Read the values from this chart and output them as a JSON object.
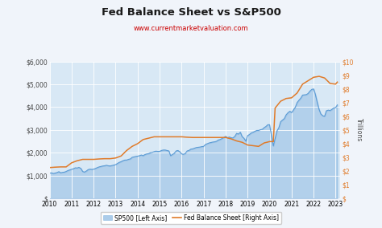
{
  "title": "Fed Balance Sheet vs S&P500",
  "subtitle": "www.currentmarketvaluation.com",
  "subtitle_color": "#cc0000",
  "background_color": "#f0f4fa",
  "plot_bg_color": "#d8e8f5",
  "grid_color": "#ffffff",
  "sp500_color": "#5b9bd5",
  "fed_color": "#e07b2a",
  "sp500_fill_alpha": 0.3,
  "ylabel_right": "Trillions",
  "left_ylim": [
    0,
    6000
  ],
  "right_ylim": [
    0,
    10
  ],
  "left_yticks": [
    0,
    1000,
    2000,
    3000,
    4000,
    5000,
    6000
  ],
  "right_yticks": [
    0,
    1,
    2,
    3,
    4,
    5,
    6,
    7,
    8,
    9,
    10
  ],
  "left_yticklabels": [
    "$",
    "$1,000",
    "$2,000",
    "$3,000",
    "$4,000",
    "$5,000",
    "$6,000"
  ],
  "right_yticklabels": [
    "$",
    "$1",
    "$2",
    "$3",
    "$4",
    "$5",
    "$6",
    "$7",
    "$8",
    "$9",
    "$10"
  ],
  "xticks": [
    2010,
    2011,
    2012,
    2013,
    2014,
    2015,
    2016,
    2017,
    2018,
    2019,
    2020,
    2021,
    2022,
    2023
  ],
  "legend_sp500": "SP500 [Left Axis]",
  "legend_fed": "Fed Balance Sheet [Right Axis]",
  "sp500_x": [
    2010.0,
    2010.08,
    2010.17,
    2010.25,
    2010.33,
    2010.42,
    2010.5,
    2010.58,
    2010.67,
    2010.75,
    2010.83,
    2010.92,
    2011.0,
    2011.08,
    2011.17,
    2011.25,
    2011.33,
    2011.42,
    2011.5,
    2011.58,
    2011.67,
    2011.75,
    2011.83,
    2011.92,
    2012.0,
    2012.08,
    2012.17,
    2012.25,
    2012.33,
    2012.42,
    2012.5,
    2012.58,
    2012.67,
    2012.75,
    2012.83,
    2012.92,
    2013.0,
    2013.08,
    2013.17,
    2013.25,
    2013.33,
    2013.42,
    2013.5,
    2013.58,
    2013.67,
    2013.75,
    2013.83,
    2013.92,
    2014.0,
    2014.08,
    2014.17,
    2014.25,
    2014.33,
    2014.42,
    2014.5,
    2014.58,
    2014.67,
    2014.75,
    2014.83,
    2014.92,
    2015.0,
    2015.08,
    2015.17,
    2015.25,
    2015.33,
    2015.42,
    2015.5,
    2015.58,
    2015.67,
    2015.75,
    2015.83,
    2015.92,
    2016.0,
    2016.08,
    2016.17,
    2016.25,
    2016.33,
    2016.42,
    2016.5,
    2016.58,
    2016.67,
    2016.75,
    2016.83,
    2016.92,
    2017.0,
    2017.08,
    2017.17,
    2017.25,
    2017.33,
    2017.42,
    2017.5,
    2017.58,
    2017.67,
    2017.75,
    2017.83,
    2017.92,
    2018.0,
    2018.08,
    2018.17,
    2018.25,
    2018.33,
    2018.42,
    2018.5,
    2018.58,
    2018.67,
    2018.75,
    2018.83,
    2018.92,
    2019.0,
    2019.08,
    2019.17,
    2019.25,
    2019.33,
    2019.42,
    2019.5,
    2019.58,
    2019.67,
    2019.75,
    2019.83,
    2019.92,
    2020.0,
    2020.08,
    2020.17,
    2020.25,
    2020.33,
    2020.42,
    2020.5,
    2020.58,
    2020.67,
    2020.75,
    2020.83,
    2020.92,
    2021.0,
    2021.08,
    2021.17,
    2021.25,
    2021.33,
    2021.42,
    2021.5,
    2021.58,
    2021.67,
    2021.75,
    2021.83,
    2021.92,
    2022.0,
    2022.08,
    2022.17,
    2022.25,
    2022.33,
    2022.42,
    2022.5,
    2022.58,
    2022.67,
    2022.75,
    2022.83,
    2022.92,
    2023.0,
    2023.08
  ],
  "sp500_y": [
    1100,
    1120,
    1090,
    1110,
    1130,
    1170,
    1120,
    1140,
    1150,
    1180,
    1220,
    1250,
    1280,
    1300,
    1340,
    1330,
    1360,
    1310,
    1180,
    1150,
    1200,
    1260,
    1280,
    1270,
    1280,
    1310,
    1350,
    1380,
    1400,
    1420,
    1430,
    1450,
    1430,
    1420,
    1440,
    1460,
    1480,
    1530,
    1580,
    1610,
    1650,
    1680,
    1680,
    1710,
    1730,
    1800,
    1820,
    1840,
    1850,
    1870,
    1900,
    1870,
    1920,
    1950,
    1960,
    2000,
    2020,
    2050,
    2070,
    2060,
    2060,
    2100,
    2120,
    2120,
    2100,
    2080,
    1870,
    1920,
    1980,
    2080,
    2100,
    2040,
    1950,
    1930,
    1970,
    2080,
    2100,
    2160,
    2170,
    2200,
    2230,
    2240,
    2250,
    2270,
    2280,
    2360,
    2400,
    2430,
    2450,
    2470,
    2480,
    2500,
    2560,
    2580,
    2620,
    2670,
    2720,
    2660,
    2690,
    2660,
    2650,
    2720,
    2850,
    2820,
    2900,
    2710,
    2640,
    2510,
    2750,
    2800,
    2870,
    2900,
    2940,
    2980,
    2980,
    3010,
    3030,
    3100,
    3150,
    3230,
    3230,
    2780,
    2300,
    2630,
    2950,
    3100,
    3360,
    3430,
    3500,
    3660,
    3750,
    3820,
    3760,
    3870,
    4000,
    4200,
    4300,
    4400,
    4530,
    4540,
    4550,
    4600,
    4700,
    4780,
    4800,
    4560,
    4200,
    3900,
    3700,
    3620,
    3600,
    3840,
    3870,
    3850,
    3900,
    3970,
    3980,
    4100
  ],
  "fed_x": [
    2010.0,
    2010.25,
    2010.5,
    2010.75,
    2011.0,
    2011.25,
    2011.5,
    2011.75,
    2012.0,
    2012.25,
    2012.5,
    2012.75,
    2013.0,
    2013.25,
    2013.5,
    2013.75,
    2014.0,
    2014.25,
    2014.5,
    2014.75,
    2015.0,
    2015.25,
    2015.5,
    2015.75,
    2016.0,
    2016.25,
    2016.5,
    2016.75,
    2017.0,
    2017.25,
    2017.5,
    2017.75,
    2018.0,
    2018.25,
    2018.5,
    2018.75,
    2019.0,
    2019.25,
    2019.5,
    2019.75,
    2020.0,
    2020.08,
    2020.17,
    2020.25,
    2020.5,
    2020.75,
    2021.0,
    2021.25,
    2021.5,
    2021.75,
    2022.0,
    2022.25,
    2022.5,
    2022.75,
    2023.0,
    2023.08
  ],
  "fed_y": [
    2.25,
    2.28,
    2.3,
    2.3,
    2.6,
    2.75,
    2.85,
    2.85,
    2.85,
    2.88,
    2.9,
    2.9,
    2.95,
    3.1,
    3.5,
    3.8,
    4.0,
    4.3,
    4.4,
    4.5,
    4.5,
    4.5,
    4.5,
    4.5,
    4.5,
    4.47,
    4.45,
    4.45,
    4.45,
    4.45,
    4.45,
    4.45,
    4.45,
    4.35,
    4.2,
    4.1,
    3.9,
    3.85,
    3.8,
    4.05,
    4.15,
    4.15,
    4.15,
    6.6,
    7.1,
    7.3,
    7.35,
    7.7,
    8.35,
    8.6,
    8.85,
    8.92,
    8.8,
    8.4,
    8.35,
    8.5
  ]
}
